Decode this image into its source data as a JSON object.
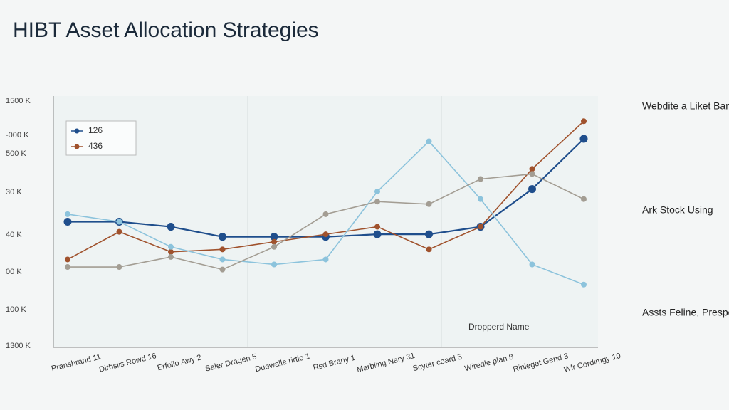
{
  "chart_data": {
    "type": "line",
    "title": "HIBT Asset Allocation Strategies",
    "y_axis_labels": [
      "1500 K",
      "-000 K",
      "500 K",
      "30 K",
      "40 K",
      "00 K",
      "100 K",
      "1300 K"
    ],
    "categories": [
      "Pranshrand 11",
      "Dirbsiis Rowd 16",
      "Erfolio Awy 2",
      "Saler Dragen 5",
      "Duewalle rirtio 1",
      "Rsd Brany 1",
      "Marbling Nary 31",
      "Scyter coard 5",
      "Wiredle plan 8",
      "Rinleget Gend 3",
      "Wlr Cordimgy 10"
    ],
    "ylim": [
      0,
      100
    ],
    "grid": true,
    "series": [
      {
        "name": "126",
        "color": "#1f4e8c",
        "values": [
          50,
          50,
          48,
          44,
          44,
          44,
          45,
          45,
          48,
          63,
          83
        ]
      },
      {
        "name": "436",
        "color": "#a0522d",
        "values": [
          35,
          46,
          38,
          39,
          42,
          45,
          48,
          39,
          48,
          71,
          90
        ]
      },
      {
        "color": "#8cc3dc",
        "values": [
          53,
          50,
          40,
          35,
          33,
          35,
          62,
          82,
          59,
          33,
          25
        ]
      },
      {
        "color": "#a39d93",
        "values": [
          32,
          32,
          36,
          31,
          40,
          53,
          58,
          57,
          67,
          69,
          59
        ]
      }
    ],
    "annotations": [
      "Webdite a Liket Banoy Conds",
      "Ark Stock Using",
      "Assts Feline, Prespennoi Kils",
      "Dropperd Name"
    ]
  }
}
